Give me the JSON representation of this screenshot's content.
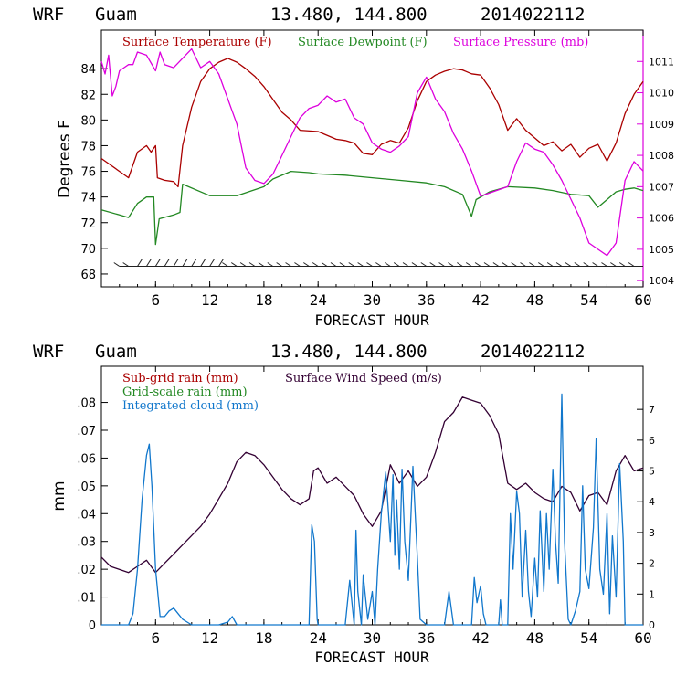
{
  "chart_data": [
    {
      "type": "line",
      "header": {
        "model": "WRF",
        "location": "Guam",
        "coords": "13.480, 144.800",
        "init": "2014022112"
      },
      "xlabel": "FORECAST HOUR",
      "ylabel": "Degrees F",
      "xlim": [
        0,
        60
      ],
      "ylim": [
        67,
        87
      ],
      "y2lim": [
        1003.8,
        1012
      ],
      "xticks": [
        6,
        12,
        18,
        24,
        30,
        36,
        42,
        48,
        54,
        60
      ],
      "yticks": [
        68,
        70,
        72,
        74,
        76,
        78,
        80,
        82,
        84
      ],
      "y2ticks": [
        1004,
        1005,
        1006,
        1007,
        1008,
        1009,
        1010,
        1011
      ],
      "legend": [
        "Surface Temperature (F)",
        "Surface Dewpoint (F)",
        "Surface Pressure (mb)"
      ],
      "colors": {
        "temperature": "#aa0000",
        "dewpoint": "#228822",
        "pressure": "#dd00dd",
        "wind": "#222222"
      },
      "series": [
        {
          "name": "Surface Temperature (F)",
          "axis": "left",
          "x": [
            0,
            2,
            3,
            4,
            5,
            5.5,
            6,
            6.2,
            7,
            8,
            8.5,
            9,
            10,
            11,
            12,
            13,
            14,
            15,
            16,
            17,
            18,
            19,
            20,
            21,
            22,
            24,
            26,
            27,
            28,
            29,
            30,
            31,
            32,
            33,
            34,
            35,
            36,
            37,
            38,
            39,
            40,
            41,
            42,
            43,
            44,
            45,
            46,
            47,
            48,
            49,
            50,
            51,
            52,
            53,
            54,
            55,
            56,
            57,
            58,
            59,
            60
          ],
          "y": [
            77,
            76,
            75.5,
            77.5,
            78,
            77.5,
            78,
            75.5,
            75.3,
            75.2,
            74.8,
            78,
            81,
            83,
            84,
            84.5,
            84.8,
            84.5,
            84,
            83.4,
            82.6,
            81.6,
            80.6,
            80,
            79.2,
            79.1,
            78.5,
            78.4,
            78.2,
            77.4,
            77.3,
            78.1,
            78.4,
            78.2,
            79.4,
            81.5,
            83,
            83.5,
            83.8,
            84,
            83.9,
            83.6,
            83.5,
            82.5,
            81.2,
            79.2,
            80.1,
            79.2,
            78.6,
            78,
            78.3,
            77.6,
            78.1,
            77.1,
            77.8,
            78.1,
            76.8,
            78.2,
            80.5,
            82,
            83
          ]
        },
        {
          "name": "Surface Dewpoint (F)",
          "axis": "left",
          "x": [
            0,
            2,
            3,
            4,
            5,
            5.8,
            6,
            6.4,
            8,
            8.7,
            9,
            12,
            15,
            18,
            19,
            21,
            23,
            24,
            27,
            30,
            33,
            36,
            38,
            40,
            41,
            41.5,
            43,
            45,
            48,
            50,
            52,
            54,
            55,
            56,
            57,
            58,
            59,
            60
          ],
          "y": [
            73,
            72.6,
            72.4,
            73.5,
            74,
            74,
            70.3,
            72.3,
            72.6,
            72.8,
            75,
            74.1,
            74.1,
            74.8,
            75.4,
            76,
            75.9,
            75.8,
            75.7,
            75.5,
            75.3,
            75.1,
            74.8,
            74.2,
            72.5,
            73.8,
            74.4,
            74.8,
            74.7,
            74.5,
            74.2,
            74.1,
            73.2,
            73.8,
            74.4,
            74.6,
            74.7,
            74.5
          ]
        },
        {
          "name": "Surface Pressure (mb)",
          "axis": "right",
          "x": [
            0,
            0.4,
            0.8,
            1.2,
            1.6,
            2,
            2.5,
            3,
            3.5,
            4,
            5,
            6,
            6.5,
            7,
            8,
            9,
            10,
            11,
            12,
            13,
            14,
            15,
            16,
            17,
            18,
            19,
            20,
            21,
            22,
            23,
            24,
            25,
            26,
            27,
            28,
            29,
            30,
            31,
            32,
            33,
            34,
            35,
            36,
            37,
            38,
            39,
            40,
            41,
            42,
            43,
            44,
            45,
            46,
            47,
            48,
            49,
            50,
            51,
            52,
            53,
            54,
            55,
            56,
            57,
            58,
            59,
            60
          ],
          "y": [
            1011,
            1010.6,
            1011.2,
            1009.9,
            1010.2,
            1010.7,
            1010.8,
            1010.9,
            1010.9,
            1011.3,
            1011.2,
            1010.7,
            1011.3,
            1010.9,
            1010.8,
            1011.1,
            1011.4,
            1010.8,
            1011,
            1010.6,
            1009.8,
            1009,
            1007.6,
            1007.2,
            1007.1,
            1007.4,
            1008,
            1008.6,
            1009.2,
            1009.5,
            1009.6,
            1009.9,
            1009.7,
            1009.8,
            1009.2,
            1009,
            1008.4,
            1008.2,
            1008.1,
            1008.3,
            1008.6,
            1010,
            1010.5,
            1009.8,
            1009.4,
            1008.7,
            1008.2,
            1007.5,
            1006.7,
            1006.8,
            1006.9,
            1007,
            1007.8,
            1008.4,
            1008.2,
            1008.1,
            1007.7,
            1007.2,
            1006.6,
            1006,
            1005.2,
            1005,
            1004.8,
            1005.2,
            1007.2,
            1007.8,
            1007.5
          ]
        }
      ],
      "wind_barbs": {
        "y_level": 68.6,
        "x": [
          2,
          3,
          4,
          5,
          6,
          7,
          8,
          9,
          10,
          11,
          12,
          13,
          14,
          15,
          16,
          17,
          18,
          19,
          20,
          21,
          22,
          23,
          24,
          25,
          26,
          27,
          28,
          29,
          30,
          31,
          32,
          33,
          34,
          35,
          36,
          37,
          38,
          39,
          40,
          41,
          42,
          43,
          44,
          45,
          46,
          47,
          48,
          49,
          50,
          51,
          52,
          53,
          54,
          55,
          56,
          57,
          58,
          59
        ]
      }
    },
    {
      "type": "line",
      "header": {
        "model": "WRF",
        "location": "Guam",
        "coords": "13.480, 144.800",
        "init": "2014022112"
      },
      "xlabel": "FORECAST HOUR",
      "ylabel": "mm",
      "xlim": [
        0,
        60
      ],
      "ylim": [
        0,
        0.093
      ],
      "y2lim": [
        0,
        8.4
      ],
      "xticks": [
        6,
        12,
        18,
        24,
        30,
        36,
        42,
        48,
        54,
        60
      ],
      "yticks": [
        0,
        0.01,
        0.02,
        0.03,
        0.04,
        0.05,
        0.06,
        0.07,
        0.08
      ],
      "ytick_labels": [
        "0",
        ".01",
        ".02",
        ".03",
        ".04",
        ".05",
        ".06",
        ".07",
        ".08"
      ],
      "y2ticks": [
        0,
        1,
        2,
        3,
        4,
        5,
        6,
        7
      ],
      "legend": [
        "Sub-grid rain (mm)",
        "Grid-scale rain (mm)",
        "Integrated cloud (mm)",
        "Surface Wind Speed (m/s)"
      ],
      "colors": {
        "subgrid": "#aa0000",
        "gridscale": "#228822",
        "cloud": "#1177cc",
        "wind": "#330033"
      },
      "series": [
        {
          "name": "Surface Wind Speed (m/s)",
          "axis": "right",
          "x": [
            0,
            1,
            2,
            3,
            4,
            5,
            6,
            7,
            8,
            9,
            10,
            11,
            12,
            13,
            14,
            15,
            16,
            17,
            18,
            19,
            20,
            21,
            22,
            23,
            23.5,
            24,
            25,
            26,
            27,
            28,
            29,
            30,
            31,
            32,
            33,
            34,
            35,
            36,
            37,
            38,
            39,
            40,
            41,
            42,
            43,
            44,
            45,
            46,
            47,
            48,
            49,
            50,
            51,
            52,
            53,
            54,
            55,
            56,
            57,
            58,
            59,
            60
          ],
          "y": [
            2.2,
            1.9,
            1.8,
            1.7,
            1.9,
            2.1,
            1.7,
            2.0,
            2.3,
            2.6,
            2.9,
            3.2,
            3.6,
            4.1,
            4.6,
            5.3,
            5.6,
            5.5,
            5.2,
            4.8,
            4.4,
            4.1,
            3.9,
            4.1,
            5.0,
            5.1,
            4.6,
            4.8,
            4.5,
            4.2,
            3.6,
            3.2,
            3.7,
            5.2,
            4.6,
            5.0,
            4.5,
            4.8,
            5.6,
            6.6,
            6.9,
            7.4,
            7.3,
            7.2,
            6.8,
            6.2,
            4.6,
            4.4,
            4.6,
            4.3,
            4.1,
            4.0,
            4.5,
            4.3,
            3.7,
            4.2,
            4.3,
            3.9,
            5.0,
            5.5,
            5.0,
            5.1
          ]
        },
        {
          "name": "Integrated cloud (mm)",
          "axis": "left",
          "x": [
            0,
            3,
            3.5,
            4,
            4.5,
            5,
            5.3,
            5.6,
            6,
            6.5,
            7,
            7.5,
            8,
            8.5,
            9,
            9.5,
            10,
            13,
            14,
            14.5,
            15,
            22,
            23,
            23.3,
            23.6,
            23.9,
            24,
            27,
            27.5,
            28,
            28.2,
            28.4,
            28.8,
            29,
            29.5,
            30,
            30.3,
            30.6,
            31,
            31.5,
            32,
            32.3,
            32.5,
            32.7,
            33,
            33.3,
            33.6,
            34,
            34.5,
            35,
            35.3,
            36,
            38,
            38.5,
            39,
            41,
            41.3,
            41.6,
            42,
            42.3,
            42.6,
            44,
            44.2,
            44.4,
            45,
            45.3,
            45.6,
            46,
            46.3,
            46.6,
            47,
            47.3,
            47.6,
            48,
            48.3,
            48.6,
            49,
            49.3,
            49.6,
            50,
            50.3,
            50.6,
            51,
            51.3,
            51.7,
            52,
            52.5,
            53,
            53.3,
            53.6,
            54,
            54.5,
            54.8,
            55.2,
            55.6,
            56,
            56.3,
            56.6,
            57,
            57.4,
            57.8,
            58,
            60
          ],
          "y": [
            0,
            0,
            0.004,
            0.02,
            0.045,
            0.061,
            0.065,
            0.05,
            0.02,
            0.003,
            0.003,
            0.005,
            0.006,
            0.004,
            0.002,
            0.001,
            0,
            0,
            0.001,
            0.003,
            0,
            0,
            0,
            0.036,
            0.03,
            0.002,
            0,
            0,
            0.016,
            0,
            0.034,
            0.012,
            0,
            0.018,
            0.002,
            0.012,
            0,
            0.02,
            0.04,
            0.055,
            0.03,
            0.054,
            0.025,
            0.045,
            0.02,
            0.056,
            0.03,
            0.016,
            0.057,
            0.024,
            0.002,
            0,
            0,
            0.012,
            0,
            0,
            0.017,
            0.008,
            0.014,
            0.004,
            0,
            0,
            0.009,
            0,
            0,
            0.04,
            0.02,
            0.048,
            0.04,
            0.01,
            0.034,
            0.012,
            0.003,
            0.024,
            0.01,
            0.041,
            0.012,
            0.04,
            0.02,
            0.056,
            0.03,
            0.015,
            0.083,
            0.03,
            0.002,
            0,
            0.005,
            0.012,
            0.05,
            0.02,
            0.013,
            0.035,
            0.067,
            0.02,
            0.011,
            0.04,
            0.004,
            0.032,
            0.01,
            0.058,
            0.03,
            0,
            0
          ]
        }
      ]
    }
  ]
}
